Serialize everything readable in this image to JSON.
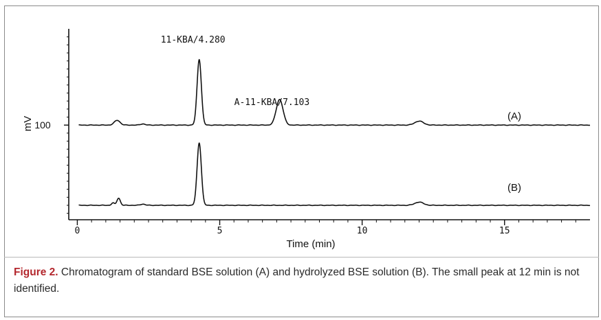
{
  "chart_data": {
    "type": "line",
    "xlabel": "Time (min)",
    "ylabel": "mV",
    "xlim": [
      -0.3,
      18
    ],
    "x_ticks": [
      {
        "value": 0,
        "label": "0"
      },
      {
        "value": 5,
        "label": "5"
      },
      {
        "value": 10,
        "label": "10"
      },
      {
        "value": 15,
        "label": "15"
      }
    ],
    "y_ticks": [
      {
        "value": 100,
        "label": "100"
      }
    ],
    "grid": false,
    "series": [
      {
        "name": "(A)",
        "baseline": 100,
        "noise": 1,
        "peaks": [
          {
            "x": 1.4,
            "height": 6,
            "width": 0.1
          },
          {
            "x": 2.3,
            "height": 1.5,
            "width": 0.08
          },
          {
            "x": 4.28,
            "height": 82,
            "width": 0.075
          },
          {
            "x": 7.103,
            "height": 32,
            "width": 0.12
          },
          {
            "x": 12.0,
            "height": 5,
            "width": 0.15
          }
        ]
      },
      {
        "name": "(B)",
        "baseline": 0,
        "noise": 1,
        "peaks": [
          {
            "x": 1.25,
            "height": 3,
            "width": 0.05
          },
          {
            "x": 1.45,
            "height": 9,
            "width": 0.06
          },
          {
            "x": 2.3,
            "height": 1.5,
            "width": 0.08
          },
          {
            "x": 4.28,
            "height": 78,
            "width": 0.075
          },
          {
            "x": 12.0,
            "height": 4,
            "width": 0.15
          }
        ]
      }
    ],
    "annotations": [
      {
        "text": "11-KBA/4.280",
        "x": 4.28
      },
      {
        "text": "A-11-KBA/7.103",
        "x": 7.103
      }
    ]
  },
  "caption": {
    "label": "Figure 2.",
    "text": " Chromatogram of standard BSE solution (A) and hydrolyzed BSE solution (B). The small peak at 12 min is not identified."
  }
}
